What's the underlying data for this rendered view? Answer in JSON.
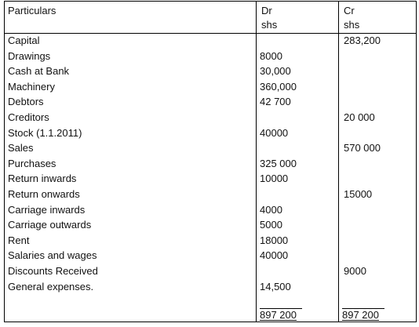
{
  "header": {
    "particulars": "Particulars",
    "dr": "Dr",
    "dr_unit": "shs",
    "cr": "Cr",
    "cr_unit": "shs"
  },
  "rows": [
    {
      "label": "Capital",
      "dr": "",
      "cr": "283,200"
    },
    {
      "label": "Drawings",
      "dr": "8000",
      "cr": ""
    },
    {
      "label": "Cash at Bank",
      "dr": "30,000",
      "cr": ""
    },
    {
      "label": "Machinery",
      "dr": "360,000",
      "cr": ""
    },
    {
      "label": "Debtors",
      "dr": "42 700",
      "cr": ""
    },
    {
      "label": "Creditors",
      "dr": "",
      "cr": "20 000"
    },
    {
      "label": "Stock (1.1.2011)",
      "dr": "40000",
      "cr": ""
    },
    {
      "label": "Sales",
      "dr": "",
      "cr": "570 000"
    },
    {
      "label": "Purchases",
      "dr": "325 000",
      "cr": ""
    },
    {
      "label": "Return inwards",
      "dr": " 10000",
      "cr": ""
    },
    {
      "label": "Return onwards",
      "dr": "",
      "cr": "15000"
    },
    {
      "label": "Carriage inwards",
      "dr": "4000",
      "cr": ""
    },
    {
      "label": "Carriage outwards",
      "dr": "5000",
      "cr": ""
    },
    {
      "label": "Rent",
      "dr": "18000",
      "cr": ""
    },
    {
      "label": "Salaries and wages",
      "dr": "40000",
      "cr": ""
    },
    {
      "label": "Discounts Received",
      "dr": "",
      "cr": "9000"
    },
    {
      "label": "General expenses.",
      "dr": "14,500",
      "cr": ""
    }
  ],
  "totals": {
    "dr": "897 200",
    "cr": "897 200"
  }
}
